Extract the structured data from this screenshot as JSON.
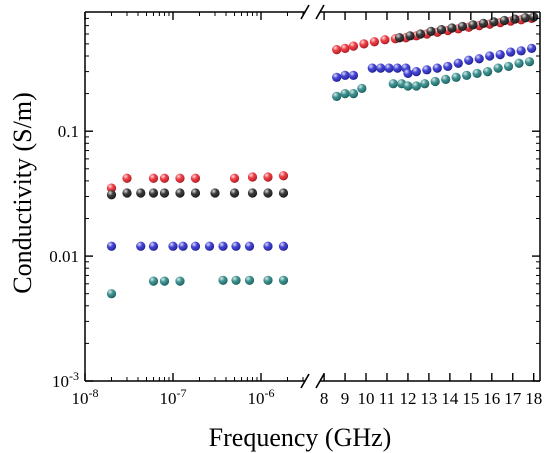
{
  "chart_data": {
    "type": "scatter",
    "xlabel": "Frequency (GHz)",
    "ylabel": "Conductivity (S/m)",
    "yscale": "log",
    "ylim": [
      0.001,
      0.9
    ],
    "x_axis_break": true,
    "grid": false,
    "legend": "none",
    "segments": [
      {
        "range": [
          1e-08,
          3e-06
        ],
        "scale": "log",
        "ticks": [
          {
            "v": 1e-08,
            "base": "10",
            "exp": "-8"
          },
          {
            "v": 1e-07,
            "base": "10",
            "exp": "-7"
          },
          {
            "v": 1e-06,
            "base": "10",
            "exp": "-6"
          }
        ]
      },
      {
        "range": [
          7.9,
          18.3
        ],
        "scale": "linear",
        "ticks": [
          {
            "v": 8,
            "label": "8"
          },
          {
            "v": 9,
            "label": "9"
          },
          {
            "v": 10,
            "label": "10"
          },
          {
            "v": 11,
            "label": "11"
          },
          {
            "v": 12,
            "label": "12"
          },
          {
            "v": 13,
            "label": "13"
          },
          {
            "v": 14,
            "label": "14"
          },
          {
            "v": 15,
            "label": "15"
          },
          {
            "v": 16,
            "label": "16"
          },
          {
            "v": 17,
            "label": "17"
          },
          {
            "v": 18,
            "label": "18"
          }
        ]
      }
    ],
    "yticks": [
      {
        "v": 0.001,
        "base": "10",
        "exp": "-3"
      },
      {
        "v": 0.01,
        "label": "0.01"
      },
      {
        "v": 0.1,
        "label": "0.1"
      }
    ],
    "series": [
      {
        "color": "#e8141e",
        "low": [
          [
            2e-08,
            0.035
          ],
          [
            3e-08,
            0.042
          ],
          [
            6e-08,
            0.042
          ],
          [
            8e-08,
            0.042
          ],
          [
            1.2e-07,
            0.042
          ],
          [
            1.8e-07,
            0.042
          ],
          [
            5e-07,
            0.042
          ],
          [
            8e-07,
            0.043
          ],
          [
            1.2e-06,
            0.043
          ],
          [
            1.8e-06,
            0.044
          ]
        ],
        "high": [
          [
            8.6,
            0.45
          ],
          [
            9.0,
            0.46
          ],
          [
            9.4,
            0.48
          ],
          [
            9.9,
            0.5
          ],
          [
            10.4,
            0.52
          ],
          [
            10.9,
            0.54
          ],
          [
            11.4,
            0.55
          ],
          [
            11.9,
            0.56
          ],
          [
            12.4,
            0.58
          ],
          [
            12.9,
            0.6
          ],
          [
            13.4,
            0.62
          ],
          [
            13.9,
            0.64
          ],
          [
            14.4,
            0.66
          ],
          [
            14.9,
            0.68
          ],
          [
            15.4,
            0.7
          ],
          [
            15.9,
            0.72
          ],
          [
            16.4,
            0.74
          ],
          [
            16.9,
            0.76
          ],
          [
            17.4,
            0.78
          ],
          [
            17.9,
            0.8
          ]
        ]
      },
      {
        "color": "#111111",
        "low": [
          [
            2e-08,
            0.031
          ],
          [
            3e-08,
            0.032
          ],
          [
            4.3e-08,
            0.032
          ],
          [
            6e-08,
            0.032
          ],
          [
            8e-08,
            0.032
          ],
          [
            1.2e-07,
            0.032
          ],
          [
            1.8e-07,
            0.032
          ],
          [
            3e-07,
            0.032
          ],
          [
            5e-07,
            0.032
          ],
          [
            8e-07,
            0.032
          ],
          [
            1.2e-06,
            0.032
          ],
          [
            1.8e-06,
            0.032
          ]
        ],
        "high": [
          [
            11.6,
            0.56
          ],
          [
            12.1,
            0.58
          ],
          [
            12.6,
            0.6
          ],
          [
            13.1,
            0.63
          ],
          [
            13.6,
            0.65
          ],
          [
            14.1,
            0.67
          ],
          [
            14.6,
            0.69
          ],
          [
            15.1,
            0.71
          ],
          [
            15.6,
            0.73
          ],
          [
            16.1,
            0.75
          ],
          [
            16.6,
            0.77
          ],
          [
            17.1,
            0.79
          ],
          [
            17.6,
            0.81
          ],
          [
            18.0,
            0.82
          ]
        ]
      },
      {
        "color": "#1c1cc9",
        "low": [
          [
            2e-08,
            0.012
          ],
          [
            4.3e-08,
            0.012
          ],
          [
            6e-08,
            0.012
          ],
          [
            1e-07,
            0.012
          ],
          [
            1.3e-07,
            0.012
          ],
          [
            1.8e-07,
            0.012
          ],
          [
            2.6e-07,
            0.012
          ],
          [
            3.7e-07,
            0.012
          ],
          [
            5.2e-07,
            0.012
          ],
          [
            7.4e-07,
            0.012
          ],
          [
            1.2e-06,
            0.012
          ],
          [
            1.8e-06,
            0.012
          ]
        ],
        "high": [
          [
            8.6,
            0.27
          ],
          [
            9.0,
            0.28
          ],
          [
            9.4,
            0.28
          ],
          [
            10.3,
            0.32
          ],
          [
            10.7,
            0.32
          ],
          [
            11.1,
            0.32
          ],
          [
            11.5,
            0.32
          ],
          [
            11.9,
            0.32
          ],
          [
            12.0,
            0.29
          ],
          [
            12.4,
            0.3
          ],
          [
            12.9,
            0.31
          ],
          [
            13.4,
            0.32
          ],
          [
            13.9,
            0.33
          ],
          [
            14.4,
            0.35
          ],
          [
            14.9,
            0.37
          ],
          [
            15.4,
            0.38
          ],
          [
            15.9,
            0.4
          ],
          [
            16.4,
            0.41
          ],
          [
            16.9,
            0.43
          ],
          [
            17.4,
            0.44
          ],
          [
            17.9,
            0.46
          ]
        ]
      },
      {
        "color": "#147a78",
        "low": [
          [
            2e-08,
            0.005
          ],
          [
            6e-08,
            0.0063
          ],
          [
            8e-08,
            0.0063
          ],
          [
            1.2e-07,
            0.0063
          ],
          [
            3.7e-07,
            0.0064
          ],
          [
            5.2e-07,
            0.0064
          ],
          [
            7.4e-07,
            0.0064
          ],
          [
            1.2e-06,
            0.0064
          ],
          [
            1.8e-06,
            0.0064
          ]
        ],
        "high": [
          [
            8.6,
            0.19
          ],
          [
            9.0,
            0.2
          ],
          [
            9.4,
            0.2
          ],
          [
            9.8,
            0.22
          ],
          [
            11.3,
            0.24
          ],
          [
            11.7,
            0.24
          ],
          [
            12.0,
            0.23
          ],
          [
            12.4,
            0.23
          ],
          [
            12.8,
            0.24
          ],
          [
            13.3,
            0.25
          ],
          [
            13.8,
            0.26
          ],
          [
            14.3,
            0.27
          ],
          [
            14.8,
            0.28
          ],
          [
            15.3,
            0.29
          ],
          [
            15.8,
            0.3
          ],
          [
            16.3,
            0.32
          ],
          [
            16.8,
            0.33
          ],
          [
            17.3,
            0.35
          ],
          [
            17.8,
            0.36
          ]
        ]
      }
    ]
  }
}
